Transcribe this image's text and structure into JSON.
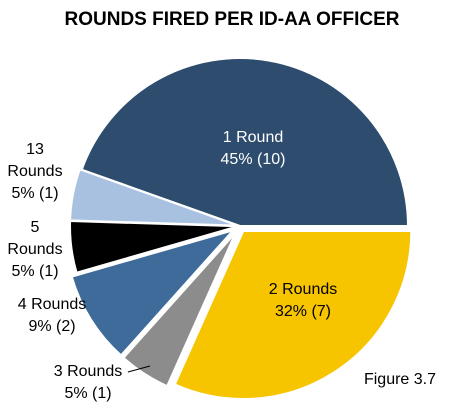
{
  "chart_data": {
    "type": "pie",
    "title": "ROUNDS FIRED PER ID-AA OFFICER",
    "categories": [
      "1 Round",
      "2 Rounds",
      "3 Rounds",
      "4 Rounds",
      "5 Rounds",
      "13 Rounds"
    ],
    "values": [
      45,
      32,
      5,
      9,
      5,
      5
    ],
    "value_labels": [
      "45% (10)",
      "32% (7)",
      "5% (1)",
      "9% (2)",
      "5% (1)",
      "5% (1)"
    ],
    "colors": [
      "#2e4d6e",
      "#f7c400",
      "#8c8c8c",
      "#3e6b9a",
      "#000000",
      "#a9c1e1"
    ],
    "note": "Figure 3.7"
  }
}
